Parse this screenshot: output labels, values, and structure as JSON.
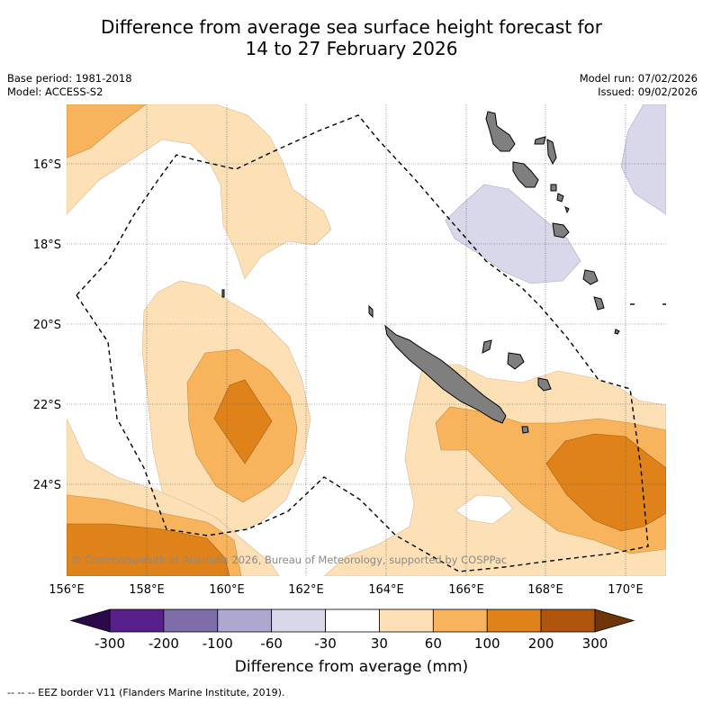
{
  "title": {
    "line1": "Difference from average sea surface height forecast for",
    "line2": "14 to 27 February 2026"
  },
  "meta": {
    "base_period": "Base period: 1981-2018",
    "model": "Model: ACCESS-S2",
    "model_run": "Model run: 07/02/2026",
    "issued": "Issued: 09/02/2026"
  },
  "map": {
    "lat_labels": [
      "16°S",
      "18°S",
      "20°S",
      "22°S",
      "24°S"
    ],
    "lon_labels": [
      "156°E",
      "158°E",
      "160°E",
      "162°E",
      "164°E",
      "166°E",
      "168°E",
      "170°E"
    ],
    "copyright": "© Commonwealth of Australia 2026, Bureau of Meteorology, supported by COSPPac"
  },
  "colorbar": {
    "ticks": [
      "-300",
      "-200",
      "-100",
      "-60",
      "-30",
      "30",
      "60",
      "100",
      "200",
      "300"
    ],
    "colors": [
      "#2a0a4a",
      "#58208a",
      "#7f6daa",
      "#aea8d0",
      "#d8d8ea",
      "#ffffff",
      "#fde0b6",
      "#f7b45c",
      "#e0821a",
      "#b0560c",
      "#6e3608"
    ],
    "label": "Difference from average (mm)"
  },
  "footer": "--  --  -- EEZ border V11 (Flanders Marine Institute, 2019)."
}
